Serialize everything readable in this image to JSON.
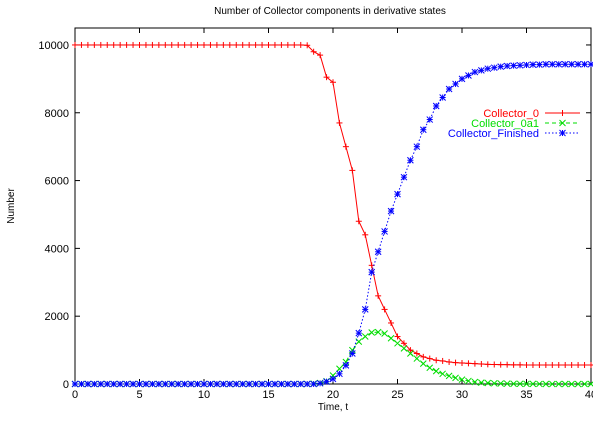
{
  "chart_data": {
    "type": "line",
    "title": "Number of Collector components in derivative states",
    "xlabel": "Time, t",
    "ylabel": "Number",
    "xlim": [
      0,
      40
    ],
    "ylim": [
      0,
      10500
    ],
    "xticks": [
      0,
      5,
      10,
      15,
      20,
      25,
      30,
      35,
      40
    ],
    "yticks": [
      0,
      2000,
      4000,
      6000,
      8000,
      10000
    ],
    "x": [
      0,
      0.5,
      1,
      1.5,
      2,
      2.5,
      3,
      3.5,
      4,
      4.5,
      5,
      5.5,
      6,
      6.5,
      7,
      7.5,
      8,
      8.5,
      9,
      9.5,
      10,
      10.5,
      11,
      11.5,
      12,
      12.5,
      13,
      13.5,
      14,
      14.5,
      15,
      15.5,
      16,
      16.5,
      17,
      17.5,
      18,
      18.5,
      19,
      19.5,
      20,
      20.5,
      21,
      21.5,
      22,
      22.5,
      23,
      23.5,
      24,
      24.5,
      25,
      25.5,
      26,
      26.5,
      27,
      27.5,
      28,
      28.5,
      29,
      29.5,
      30,
      30.5,
      31,
      31.5,
      32,
      32.5,
      33,
      33.5,
      34,
      34.5,
      35,
      35.5,
      36,
      36.5,
      37,
      37.5,
      38,
      38.5,
      39,
      39.5,
      40
    ],
    "grid": false,
    "legend_position": "top-right",
    "series": [
      {
        "name": "Collector_0",
        "color": "#ff0000",
        "dash": "solid",
        "marker": "plus",
        "values": [
          10000,
          10000,
          10000,
          10000,
          10000,
          10000,
          10000,
          10000,
          10000,
          10000,
          10000,
          10000,
          10000,
          10000,
          10000,
          10000,
          10000,
          10000,
          10000,
          10000,
          10000,
          10000,
          10000,
          10000,
          10000,
          10000,
          10000,
          10000,
          10000,
          10000,
          10000,
          10000,
          10000,
          10000,
          10000,
          10000,
          9990,
          9800,
          9700,
          9050,
          8900,
          7700,
          7000,
          6300,
          4800,
          4400,
          3500,
          2600,
          2200,
          1800,
          1400,
          1200,
          1000,
          900,
          800,
          750,
          700,
          680,
          650,
          630,
          620,
          610,
          600,
          590,
          580,
          575,
          570,
          570,
          565,
          565,
          560,
          560,
          560,
          560,
          560,
          560,
          560,
          560,
          560,
          560,
          560
        ]
      },
      {
        "name": "Collector_0a1",
        "color": "#00dd00",
        "dash": "dashed",
        "marker": "cross",
        "values": [
          0,
          0,
          0,
          0,
          0,
          0,
          0,
          0,
          0,
          0,
          0,
          0,
          0,
          0,
          0,
          0,
          0,
          0,
          0,
          0,
          0,
          0,
          0,
          0,
          0,
          0,
          0,
          0,
          0,
          0,
          0,
          0,
          0,
          0,
          0,
          0,
          0,
          10,
          30,
          80,
          250,
          450,
          650,
          1000,
          1250,
          1400,
          1520,
          1530,
          1490,
          1350,
          1200,
          1050,
          900,
          750,
          600,
          480,
          380,
          300,
          240,
          180,
          130,
          90,
          60,
          40,
          30,
          20,
          15,
          10,
          8,
          6,
          4,
          3,
          2,
          1,
          0,
          0,
          0,
          0,
          0,
          0,
          0
        ]
      },
      {
        "name": "Collector_Finished",
        "color": "#0000ff",
        "dash": "dotted",
        "marker": "star",
        "values": [
          0,
          0,
          0,
          0,
          0,
          0,
          0,
          0,
          0,
          0,
          0,
          0,
          0,
          0,
          0,
          0,
          0,
          0,
          0,
          0,
          0,
          0,
          0,
          0,
          0,
          0,
          0,
          0,
          0,
          0,
          0,
          0,
          0,
          0,
          0,
          0,
          0,
          0,
          20,
          70,
          150,
          300,
          550,
          900,
          1500,
          2200,
          3300,
          3900,
          4500,
          5100,
          5600,
          6100,
          6600,
          7000,
          7500,
          7800,
          8200,
          8450,
          8700,
          8850,
          9000,
          9100,
          9200,
          9250,
          9300,
          9330,
          9360,
          9380,
          9390,
          9400,
          9410,
          9420,
          9420,
          9430,
          9430,
          9430,
          9430,
          9430,
          9430,
          9430,
          9430
        ]
      }
    ]
  }
}
